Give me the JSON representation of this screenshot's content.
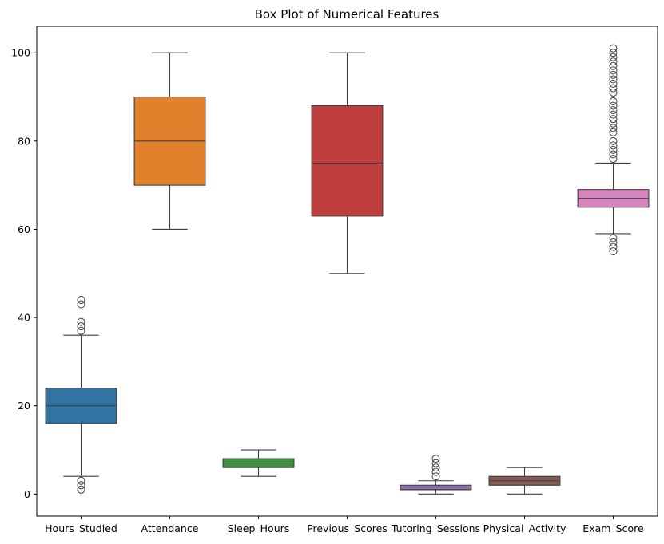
{
  "chart_data": {
    "type": "box",
    "title": "Box Plot of Numerical Features",
    "xlabel": "",
    "ylabel": "",
    "ylim": [
      -5,
      106
    ],
    "yticks": [
      0,
      20,
      40,
      60,
      80,
      100
    ],
    "grid": false,
    "categories": [
      "Hours_Studied",
      "Attendance",
      "Sleep_Hours",
      "Previous_Scores",
      "Tutoring_Sessions",
      "Physical_Activity",
      "Exam_Score"
    ],
    "boxes": [
      {
        "category": "Hours_Studied",
        "color": "#3274a1",
        "whisker_low": 4,
        "q1": 16,
        "median": 20,
        "q3": 24,
        "whisker_high": 36,
        "outliers": [
          1,
          2,
          3,
          37,
          38,
          39,
          43,
          44
        ]
      },
      {
        "category": "Attendance",
        "color": "#e1812c",
        "whisker_low": 60,
        "q1": 70,
        "median": 80,
        "q3": 90,
        "whisker_high": 100,
        "outliers": []
      },
      {
        "category": "Sleep_Hours",
        "color": "#3a923a",
        "whisker_low": 4,
        "q1": 6,
        "median": 7,
        "q3": 8,
        "whisker_high": 10,
        "outliers": []
      },
      {
        "category": "Previous_Scores",
        "color": "#c03d3e",
        "whisker_low": 50,
        "q1": 63,
        "median": 75,
        "q3": 88,
        "whisker_high": 100,
        "outliers": []
      },
      {
        "category": "Tutoring_Sessions",
        "color": "#9372b2",
        "whisker_low": 0,
        "q1": 1,
        "median": 1,
        "q3": 2,
        "whisker_high": 3,
        "outliers": [
          4,
          5,
          6,
          7,
          8
        ]
      },
      {
        "category": "Physical_Activity",
        "color": "#845b53",
        "whisker_low": 0,
        "q1": 2,
        "median": 3,
        "q3": 4,
        "whisker_high": 6,
        "outliers": []
      },
      {
        "category": "Exam_Score",
        "color": "#d684bd",
        "whisker_low": 59,
        "q1": 65,
        "median": 67,
        "q3": 69,
        "whisker_high": 75,
        "outliers": [
          55,
          56,
          57,
          58,
          76,
          77,
          78,
          79,
          80,
          82,
          83,
          84,
          85,
          86,
          87,
          88,
          89,
          91,
          92,
          93,
          94,
          95,
          96,
          97,
          98,
          99,
          100,
          101
        ]
      }
    ]
  }
}
